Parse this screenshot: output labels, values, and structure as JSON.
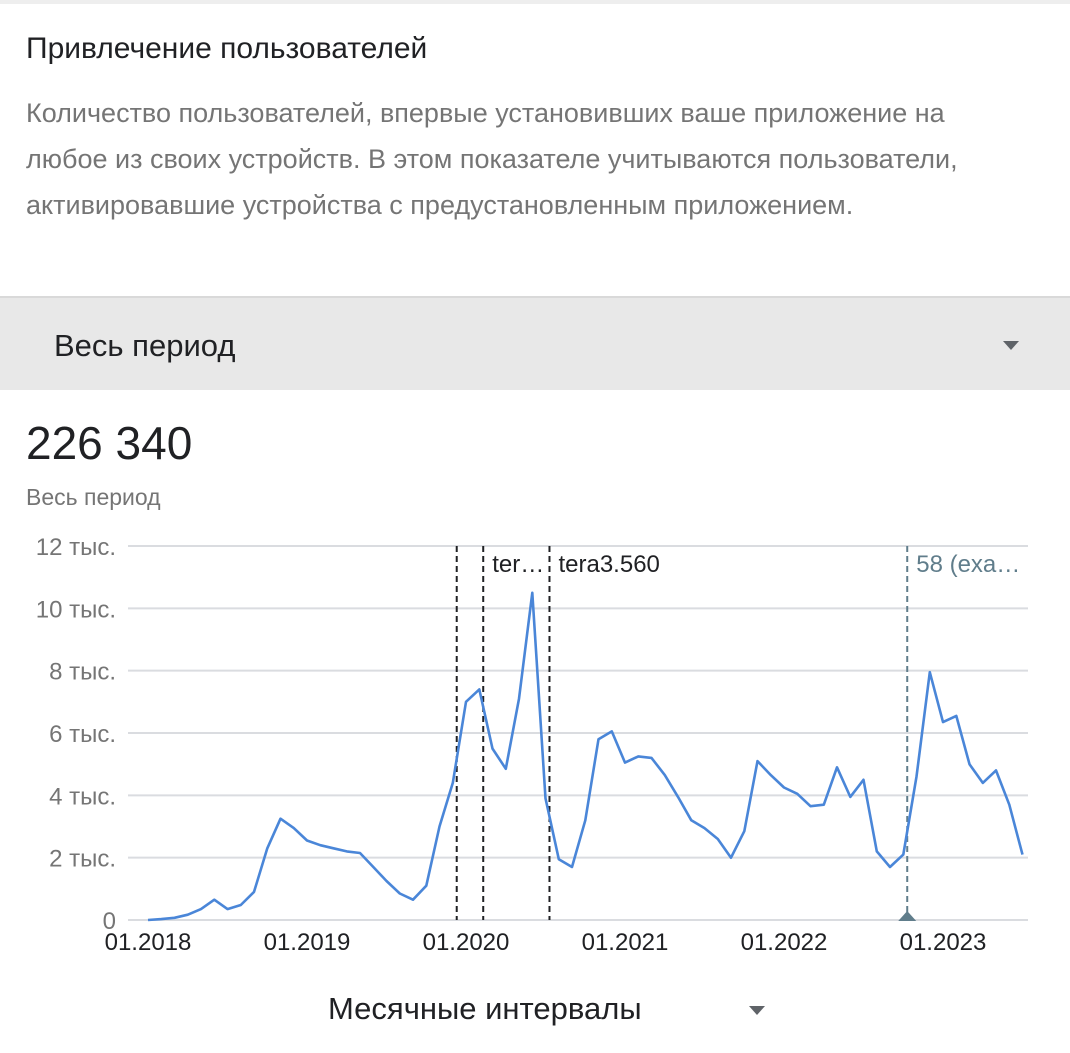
{
  "card": {
    "title": "Привлечение пользователей",
    "description": "Количество пользователей, впервые установивших ваше приложение на любое из своих устройств. В этом показателе учитываются пользователи, активировавшие устройства с предустановленным приложением."
  },
  "period_selector": {
    "label": "Весь период",
    "icon": "chevron-down-icon"
  },
  "summary": {
    "value": "226 340",
    "period": "Весь период"
  },
  "interval_selector": {
    "label": "Месячные интервалы",
    "icon": "chevron-down-icon"
  },
  "colors": {
    "series": "#4a86d8",
    "annotation": "#202124",
    "event": "#607d8b",
    "grid": "#dadce0",
    "axis": "#757575"
  },
  "chart_data": {
    "type": "line",
    "ylim": [
      0,
      12000
    ],
    "y_ticks": [
      {
        "value": 0,
        "label": "0"
      },
      {
        "value": 2000,
        "label": "2 тыс."
      },
      {
        "value": 4000,
        "label": "4 тыс."
      },
      {
        "value": 6000,
        "label": "6 тыс."
      },
      {
        "value": 8000,
        "label": "8 тыс."
      },
      {
        "value": 10000,
        "label": "10 тыс."
      },
      {
        "value": 12000,
        "label": "12 тыс."
      }
    ],
    "x_ticks": [
      "01.2018",
      "01.2019",
      "01.2020",
      "01.2021",
      "01.2022",
      "01.2023"
    ],
    "grid": "horizontal",
    "series": [
      {
        "points": [
          [
            "2018-01",
            0
          ],
          [
            "2018-02",
            30
          ],
          [
            "2018-03",
            70
          ],
          [
            "2018-04",
            170
          ],
          [
            "2018-05",
            350
          ],
          [
            "2018-06",
            650
          ],
          [
            "2018-07",
            350
          ],
          [
            "2018-08",
            480
          ],
          [
            "2018-09",
            900
          ],
          [
            "2018-10",
            2300
          ],
          [
            "2018-11",
            3250
          ],
          [
            "2018-12",
            2950
          ],
          [
            "2019-01",
            2550
          ],
          [
            "2019-02",
            2400
          ],
          [
            "2019-03",
            2300
          ],
          [
            "2019-04",
            2200
          ],
          [
            "2019-05",
            2150
          ],
          [
            "2019-06",
            1700
          ],
          [
            "2019-07",
            1250
          ],
          [
            "2019-08",
            850
          ],
          [
            "2019-09",
            650
          ],
          [
            "2019-10",
            1100
          ],
          [
            "2019-11",
            3000
          ],
          [
            "2019-12",
            4400
          ],
          [
            "2020-01",
            7000
          ],
          [
            "2020-02",
            7400
          ],
          [
            "2020-03",
            5500
          ],
          [
            "2020-04",
            4850
          ],
          [
            "2020-05",
            7100
          ],
          [
            "2020-06",
            10500
          ],
          [
            "2020-07",
            3900
          ],
          [
            "2020-08",
            1950
          ],
          [
            "2020-09",
            1700
          ],
          [
            "2020-10",
            3200
          ],
          [
            "2020-11",
            5800
          ],
          [
            "2020-12",
            6050
          ],
          [
            "2021-01",
            5050
          ],
          [
            "2021-02",
            5250
          ],
          [
            "2021-03",
            5200
          ],
          [
            "2021-04",
            4650
          ],
          [
            "2021-05",
            3950
          ],
          [
            "2021-06",
            3200
          ],
          [
            "2021-07",
            2950
          ],
          [
            "2021-08",
            2600
          ],
          [
            "2021-09",
            2000
          ],
          [
            "2021-10",
            2850
          ],
          [
            "2021-11",
            5100
          ],
          [
            "2021-12",
            4650
          ],
          [
            "2022-01",
            4250
          ],
          [
            "2022-02",
            4050
          ],
          [
            "2022-03",
            3650
          ],
          [
            "2022-04",
            3700
          ],
          [
            "2022-05",
            4900
          ],
          [
            "2022-06",
            3950
          ],
          [
            "2022-07",
            4500
          ],
          [
            "2022-08",
            2200
          ],
          [
            "2022-09",
            1700
          ],
          [
            "2022-10",
            2100
          ],
          [
            "2022-11",
            4600
          ],
          [
            "2022-12",
            7950
          ],
          [
            "2023-01",
            6350
          ],
          [
            "2023-02",
            6550
          ],
          [
            "2023-03",
            5000
          ],
          [
            "2023-04",
            4400
          ],
          [
            "2023-05",
            4800
          ],
          [
            "2023-06",
            3700
          ],
          [
            "2023-07",
            2100
          ]
        ]
      }
    ],
    "annotations": [
      {
        "x": "2019-12",
        "label": ""
      },
      {
        "x": "2020-02",
        "label": "ter…"
      },
      {
        "x": "2020-07",
        "label": "tera3.560"
      }
    ],
    "events": [
      {
        "x": "2022-10",
        "label": "58 (exa…"
      }
    ]
  }
}
